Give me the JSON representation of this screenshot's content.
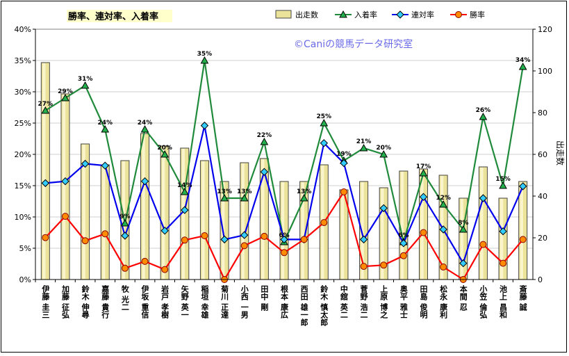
{
  "chart_data": {
    "type": "bar+line",
    "title": "勝率、連対率、入着率",
    "watermark": "©Caniの競馬データ研究室",
    "y2label": "出走数",
    "categories": [
      "伊藤 圭三",
      "加藤 征弘",
      "鈴木 伸尋",
      "嘉藤 貴行",
      "牧 光二",
      "伊坂 重信",
      "岩戸 孝樹",
      "矢野 英一",
      "稲垣 幸雄",
      "菊川 正達",
      "小西 一男",
      "田中 剛",
      "根本 康広",
      "西田 雄一郎",
      "鈴木 慎太郎",
      "中舘 英二",
      "菅野 浩二",
      "上原 博之",
      "奥平 雅士",
      "田島 俊明",
      "松永 康利",
      "本間 忍",
      "小笠 倫弘",
      "池上 昌和",
      "斎藤 誠"
    ],
    "ylim": [
      0,
      40
    ],
    "y_ticks": [
      "0%",
      "5%",
      "10%",
      "15%",
      "20%",
      "25%",
      "30%",
      "35%",
      "40%"
    ],
    "y2lim": [
      0,
      120
    ],
    "y2_ticks": [
      "0",
      "20",
      "40",
      "60",
      "80",
      "100",
      "120"
    ],
    "legend": [
      "出走数",
      "入着率",
      "連対率",
      "勝率"
    ],
    "colors": {
      "bar": "#ece39a",
      "bar_stroke": "#444444",
      "place": "#1f8a3a",
      "place_marker": "#22b14c",
      "quinella": "#0000ee",
      "quinella_marker": "#33ccff",
      "win": "#ff0000",
      "win_marker": "#ff8c00",
      "title_bg": "#ffffcc"
    },
    "series": [
      {
        "name": "出走数",
        "axis": "right",
        "values": [
          104,
          89,
          65,
          55,
          57,
          70,
          64,
          63,
          57,
          47,
          56,
          58,
          47,
          47,
          55,
          43,
          47,
          44,
          52,
          53,
          50,
          39,
          54,
          39,
          47
        ]
      },
      {
        "name": "入着率",
        "axis": "left",
        "values": [
          27,
          29,
          31,
          24,
          9,
          24,
          20,
          14,
          35,
          13,
          13,
          22,
          6,
          13,
          25,
          19,
          21,
          20,
          6,
          17,
          12,
          8,
          26,
          15,
          34
        ],
        "labels": [
          "27%",
          "29%",
          "31%",
          "24%",
          "9%",
          "24%",
          "20%",
          "14%",
          "35%",
          "13%",
          "13%",
          "22%",
          "6%",
          "13%",
          "25%",
          "19%",
          "21%",
          "20%",
          "6%",
          "17%",
          "12%",
          "8%",
          "26%",
          "15%",
          "34%"
        ]
      },
      {
        "name": "連対率",
        "axis": "left",
        "values": [
          15.4,
          15.7,
          18.5,
          18.2,
          7.0,
          15.7,
          7.8,
          11.1,
          24.6,
          6.4,
          7.1,
          17.2,
          6.4,
          6.4,
          21.8,
          18.6,
          6.4,
          11.4,
          5.8,
          13.2,
          8.0,
          2.6,
          13.0,
          7.7,
          14.9
        ]
      },
      {
        "name": "勝率",
        "axis": "left",
        "values": [
          6.7,
          10.1,
          6.2,
          7.3,
          1.8,
          2.9,
          1.6,
          6.3,
          7.0,
          0.0,
          5.4,
          6.9,
          4.3,
          6.4,
          9.1,
          14.0,
          2.1,
          2.3,
          3.8,
          7.5,
          2.0,
          0.0,
          5.6,
          2.6,
          6.4
        ]
      }
    ]
  }
}
